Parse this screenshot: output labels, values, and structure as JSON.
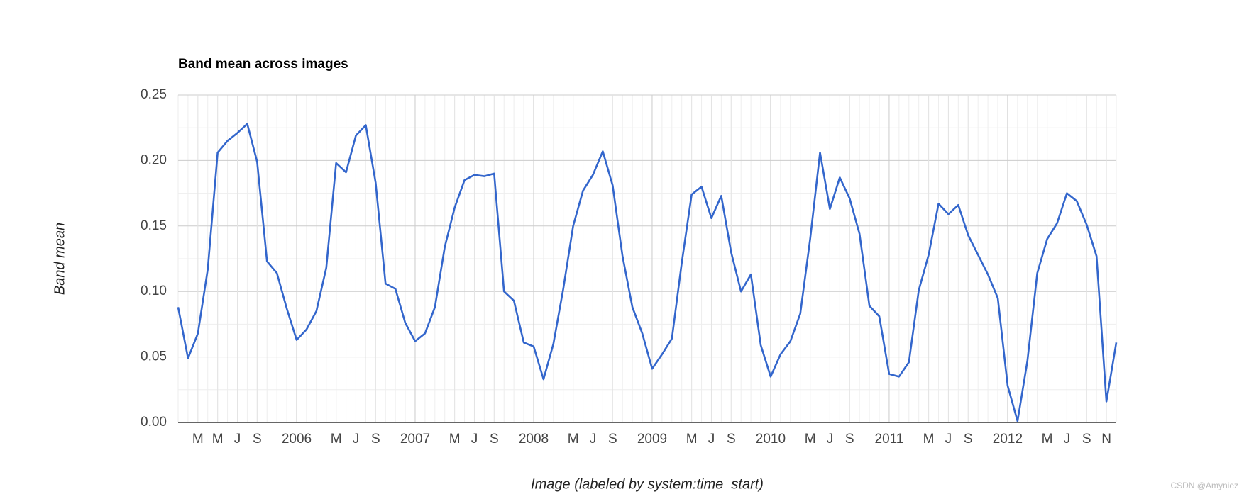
{
  "chart_data": {
    "type": "line",
    "title": "Band mean across images",
    "x_label": "Image (labeled by system:time_start)",
    "y_label": "Band mean",
    "watermark": "CSDN @Amyniez",
    "grid": true,
    "x": [
      "2005-01",
      "2005-02",
      "2005-03",
      "2005-04",
      "2005-05",
      "2005-06",
      "2005-07",
      "2005-08",
      "2005-09",
      "2005-10",
      "2005-11",
      "2005-12",
      "2006-01",
      "2006-02",
      "2006-03",
      "2006-04",
      "2006-05",
      "2006-06",
      "2006-07",
      "2006-08",
      "2006-09",
      "2006-10",
      "2006-11",
      "2006-12",
      "2007-01",
      "2007-02",
      "2007-03",
      "2007-04",
      "2007-05",
      "2007-06",
      "2007-07",
      "2007-08",
      "2007-09",
      "2007-10",
      "2007-11",
      "2007-12",
      "2008-01",
      "2008-02",
      "2008-03",
      "2008-04",
      "2008-05",
      "2008-06",
      "2008-07",
      "2008-08",
      "2008-09",
      "2008-10",
      "2008-11",
      "2008-12",
      "2009-01",
      "2009-02",
      "2009-03",
      "2009-04",
      "2009-05",
      "2009-06",
      "2009-07",
      "2009-08",
      "2009-09",
      "2009-10",
      "2009-11",
      "2009-12",
      "2010-01",
      "2010-02",
      "2010-03",
      "2010-04",
      "2010-05",
      "2010-06",
      "2010-07",
      "2010-08",
      "2010-09",
      "2010-10",
      "2010-11",
      "2010-12",
      "2011-01",
      "2011-02",
      "2011-03",
      "2011-04",
      "2011-05",
      "2011-06",
      "2011-07",
      "2011-08",
      "2011-09",
      "2011-10",
      "2011-11",
      "2011-12",
      "2012-01",
      "2012-02",
      "2012-03",
      "2012-04",
      "2012-05",
      "2012-06",
      "2012-07",
      "2012-08",
      "2012-09",
      "2012-10",
      "2012-11",
      "2012-12"
    ],
    "series": [
      {
        "name": "Band mean",
        "color": "#3366cc",
        "values": [
          0.088,
          0.049,
          0.068,
          0.117,
          0.206,
          0.215,
          0.221,
          0.228,
          0.199,
          0.123,
          0.114,
          0.087,
          0.063,
          0.071,
          0.085,
          0.118,
          0.198,
          0.191,
          0.219,
          0.227,
          0.183,
          0.106,
          0.102,
          0.076,
          0.062,
          0.068,
          0.088,
          0.134,
          0.164,
          0.185,
          0.189,
          0.188,
          0.19,
          0.1,
          0.093,
          0.061,
          0.058,
          0.033,
          0.06,
          0.102,
          0.15,
          0.177,
          0.189,
          0.207,
          0.181,
          0.127,
          0.088,
          0.068,
          0.041,
          0.052,
          0.064,
          0.122,
          0.174,
          0.18,
          0.156,
          0.173,
          0.13,
          0.1,
          0.113,
          0.059,
          0.035,
          0.052,
          0.062,
          0.083,
          0.14,
          0.206,
          0.163,
          0.187,
          0.171,
          0.144,
          0.089,
          0.081,
          0.037,
          0.035,
          0.046,
          0.101,
          0.128,
          0.167,
          0.159,
          0.166,
          0.143,
          0.128,
          0.113,
          0.095,
          0.028,
          0.001,
          0.047,
          0.114,
          0.14,
          0.152,
          0.175,
          0.169,
          0.151,
          0.127,
          0.016,
          0.061
        ]
      }
    ],
    "xlim": [
      "2005-01",
      "2012-12"
    ],
    "xticks": [
      {
        "value": "2005-03",
        "label": "M"
      },
      {
        "value": "2005-05",
        "label": "M"
      },
      {
        "value": "2005-07",
        "label": "J"
      },
      {
        "value": "2005-09",
        "label": "S"
      },
      {
        "value": "2006-01",
        "label": "2006"
      },
      {
        "value": "2006-05",
        "label": "M"
      },
      {
        "value": "2006-07",
        "label": "J"
      },
      {
        "value": "2006-09",
        "label": "S"
      },
      {
        "value": "2007-01",
        "label": "2007"
      },
      {
        "value": "2007-05",
        "label": "M"
      },
      {
        "value": "2007-07",
        "label": "J"
      },
      {
        "value": "2007-09",
        "label": "S"
      },
      {
        "value": "2008-01",
        "label": "2008"
      },
      {
        "value": "2008-05",
        "label": "M"
      },
      {
        "value": "2008-07",
        "label": "J"
      },
      {
        "value": "2008-09",
        "label": "S"
      },
      {
        "value": "2009-01",
        "label": "2009"
      },
      {
        "value": "2009-05",
        "label": "M"
      },
      {
        "value": "2009-07",
        "label": "J"
      },
      {
        "value": "2009-09",
        "label": "S"
      },
      {
        "value": "2010-01",
        "label": "2010"
      },
      {
        "value": "2010-05",
        "label": "M"
      },
      {
        "value": "2010-07",
        "label": "J"
      },
      {
        "value": "2010-09",
        "label": "S"
      },
      {
        "value": "2011-01",
        "label": "2011"
      },
      {
        "value": "2011-05",
        "label": "M"
      },
      {
        "value": "2011-07",
        "label": "J"
      },
      {
        "value": "2011-09",
        "label": "S"
      },
      {
        "value": "2012-01",
        "label": "2012"
      },
      {
        "value": "2012-05",
        "label": "M"
      },
      {
        "value": "2012-07",
        "label": "J"
      },
      {
        "value": "2012-09",
        "label": "S"
      },
      {
        "value": "2012-11",
        "label": "N"
      }
    ],
    "ylim": [
      0,
      0.25
    ],
    "yticks": [
      {
        "value": 0,
        "label": "0.00"
      },
      0.05,
      {
        "value": 0.1,
        "label": "0.10"
      },
      0.15,
      {
        "value": 0.2,
        "label": "0.20"
      },
      0.25
    ]
  }
}
